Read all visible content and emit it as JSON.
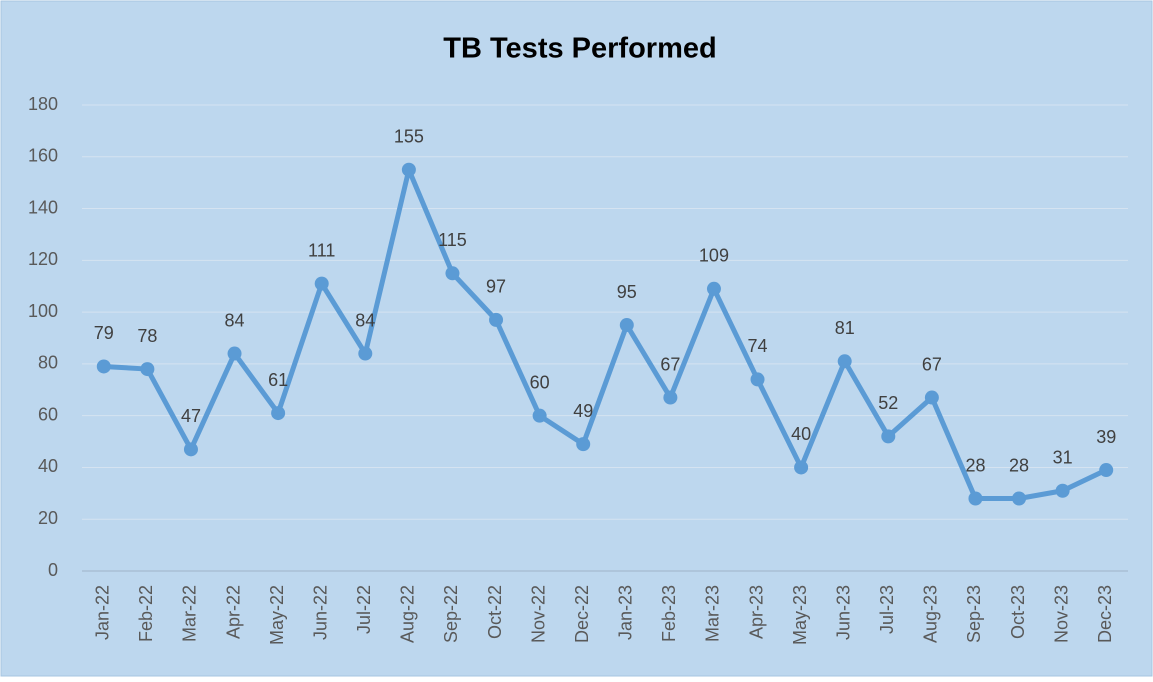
{
  "chart_data": {
    "type": "line",
    "title": "TB Tests Performed",
    "categories": [
      "Jan-22",
      "Feb-22",
      "Mar-22",
      "Apr-22",
      "May-22",
      "Jun-22",
      "Jul-22",
      "Aug-22",
      "Sep-22",
      "Oct-22",
      "Nov-22",
      "Dec-22",
      "Jan-23",
      "Feb-23",
      "Mar-23",
      "Apr-23",
      "May-23",
      "Jun-23",
      "Jul-23",
      "Aug-23",
      "Sep-23",
      "Oct-23",
      "Nov-23",
      "Dec-23"
    ],
    "values": [
      79,
      78,
      47,
      84,
      61,
      111,
      84,
      155,
      115,
      97,
      60,
      49,
      95,
      67,
      109,
      74,
      40,
      81,
      52,
      67,
      28,
      28,
      31,
      39
    ],
    "color": "#5b9bd5",
    "ylim": [
      0,
      180
    ],
    "yticks": [
      0,
      20,
      40,
      60,
      80,
      100,
      120,
      140,
      160,
      180
    ],
    "grid": true
  }
}
